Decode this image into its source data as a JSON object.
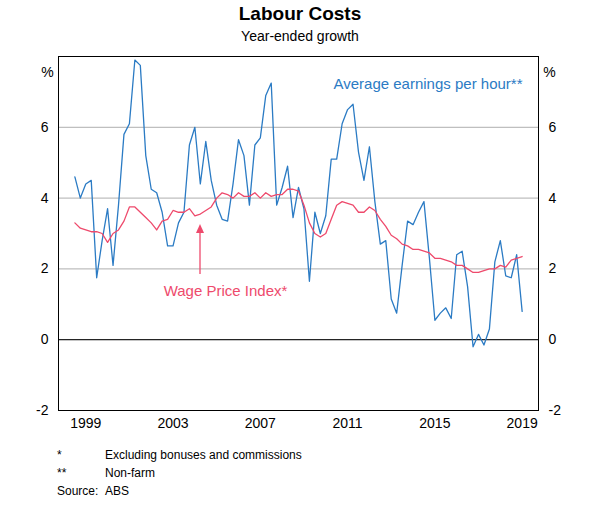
{
  "chart_data": {
    "type": "line",
    "title": "Labour Costs",
    "subtitle": "Year-ended growth",
    "ylabel": "%",
    "x": [
      1998.5,
      1998.75,
      1999,
      1999.25,
      1999.5,
      1999.75,
      2000,
      2000.25,
      2000.5,
      2000.75,
      2001,
      2001.25,
      2001.5,
      2001.75,
      2002,
      2002.25,
      2002.5,
      2002.75,
      2003,
      2003.25,
      2003.5,
      2003.75,
      2004,
      2004.25,
      2004.5,
      2004.75,
      2005,
      2005.25,
      2005.5,
      2005.75,
      2006,
      2006.25,
      2006.5,
      2006.75,
      2007,
      2007.25,
      2007.5,
      2007.75,
      2008,
      2008.25,
      2008.5,
      2008.75,
      2009,
      2009.25,
      2009.5,
      2009.75,
      2010,
      2010.25,
      2010.5,
      2010.75,
      2011,
      2011.25,
      2011.5,
      2011.75,
      2012,
      2012.25,
      2012.5,
      2012.75,
      2013,
      2013.25,
      2013.5,
      2013.75,
      2014,
      2014.25,
      2014.5,
      2014.75,
      2015,
      2015.25,
      2015.5,
      2015.75,
      2016,
      2016.25,
      2016.5,
      2016.75,
      2017,
      2017.25,
      2017.5,
      2017.75,
      2018,
      2018.25,
      2018.5,
      2018.75,
      2019
    ],
    "series": [
      {
        "name": "Average earnings per hour**",
        "color": "#2b7bc4",
        "values": [
          4.6,
          4.0,
          4.4,
          4.5,
          1.75,
          2.8,
          3.7,
          2.1,
          3.8,
          5.8,
          6.1,
          7.9,
          7.75,
          5.2,
          4.25,
          4.15,
          3.6,
          2.65,
          2.65,
          3.3,
          3.6,
          5.5,
          6.0,
          4.4,
          5.6,
          4.5,
          3.8,
          3.4,
          3.35,
          4.4,
          5.65,
          5.2,
          3.8,
          5.5,
          5.7,
          6.9,
          7.25,
          3.8,
          4.3,
          4.9,
          3.45,
          4.3,
          3.7,
          1.65,
          3.6,
          3.0,
          3.5,
          5.1,
          5.1,
          6.1,
          6.5,
          6.65,
          5.3,
          4.5,
          5.45,
          3.9,
          2.7,
          2.8,
          1.15,
          0.75,
          2.1,
          3.35,
          3.25,
          3.6,
          3.9,
          2.3,
          0.55,
          0.75,
          0.9,
          0.6,
          2.4,
          2.5,
          1.5,
          -0.2,
          0.15,
          -0.15,
          0.3,
          2.2,
          2.8,
          1.8,
          1.75,
          2.4,
          0.8
        ]
      },
      {
        "name": "Wage Price Index*",
        "color": "#ee4a6c",
        "values": [
          3.3,
          3.15,
          3.1,
          3.05,
          3.05,
          3.0,
          2.75,
          3.0,
          3.1,
          3.35,
          3.75,
          3.75,
          3.6,
          3.45,
          3.3,
          3.1,
          3.35,
          3.4,
          3.65,
          3.6,
          3.6,
          3.7,
          3.5,
          3.55,
          3.65,
          3.75,
          4.0,
          4.15,
          4.1,
          4.0,
          4.15,
          4.05,
          4.05,
          4.15,
          4.0,
          4.15,
          4.05,
          4.1,
          4.1,
          4.25,
          4.25,
          4.2,
          3.8,
          3.3,
          3.0,
          2.9,
          3.0,
          3.4,
          3.8,
          3.9,
          3.85,
          3.8,
          3.6,
          3.6,
          3.75,
          3.65,
          3.4,
          3.2,
          2.95,
          2.85,
          2.7,
          2.65,
          2.55,
          2.55,
          2.5,
          2.45,
          2.3,
          2.3,
          2.25,
          2.2,
          2.1,
          2.1,
          2.0,
          1.9,
          1.9,
          1.95,
          2.0,
          2.0,
          2.1,
          2.05,
          2.25,
          2.3,
          2.35
        ]
      }
    ],
    "xlim": [
      1997.75,
      2019.75
    ],
    "xticks": [
      1999,
      2003,
      2007,
      2011,
      2015,
      2019
    ],
    "ylim": [
      -2,
      8
    ],
    "yticks": [
      -2,
      0,
      2,
      4,
      6
    ],
    "grid": true,
    "notes": [
      [
        "*",
        "Excluding bonuses and commissions"
      ],
      [
        "**",
        "Non-farm"
      ],
      [
        "Source:",
        "ABS"
      ]
    ]
  }
}
